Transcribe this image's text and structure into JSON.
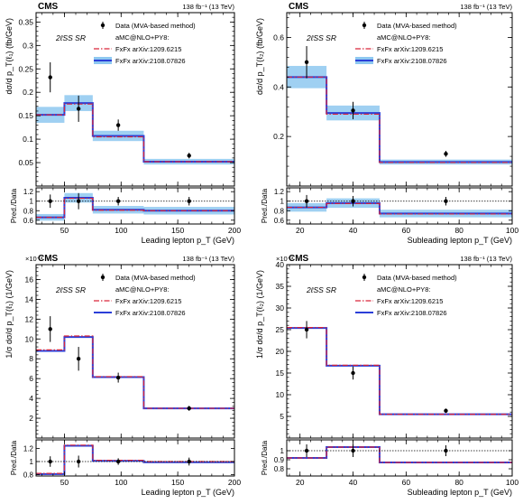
{
  "chart_data": [
    {
      "type": "step",
      "cms_label": "CMS",
      "lumi": "138 fb⁻¹ (13 TeV)",
      "region": "2ℓSS SR",
      "xlabel": "Leading lepton p_T (GeV)",
      "ylabel": "dσ/d p_T(ℓ₁) (fb/GeV)",
      "ratio_ylabel": "Pred./Data",
      "y_exponent": "",
      "xlim": [
        25,
        200
      ],
      "ylim": [
        0,
        0.37
      ],
      "ratio_ylim": [
        0.52,
        1.28
      ],
      "xticks": [
        50,
        100,
        150,
        200
      ],
      "xticklabels": [
        "50",
        "100",
        "150",
        "200"
      ],
      "yticks": [
        0.05,
        0.1,
        0.15,
        0.2,
        0.25,
        0.3,
        0.35
      ],
      "yticklabels": [
        "0.05",
        "0.1",
        "0.15",
        "0.2",
        "0.25",
        "0.3",
        "0.35"
      ],
      "ratio_yticks": [
        0.6,
        0.8,
        1.0,
        1.2
      ],
      "ratio_yticklabels": [
        "0.6",
        "0.8",
        "1",
        "1.2"
      ],
      "bin_edges": [
        25,
        50,
        75,
        120,
        200
      ],
      "legend": {
        "data": "Data (MVA-based method)",
        "generator": "aMC@NLO+PY8:",
        "pred1": "FxFx arXiv:1209.6215",
        "pred2": "FxFx arXiv:2108.07826"
      },
      "series": [
        {
          "key": "data",
          "x": [
            37.5,
            62.5,
            97.5,
            160
          ],
          "values": [
            0.232,
            0.165,
            0.13,
            0.065
          ],
          "err": [
            0.032,
            0.028,
            0.012,
            0.006
          ]
        },
        {
          "key": "pred1",
          "values": [
            0.152,
            0.175,
            0.105,
            0.052
          ]
        },
        {
          "key": "pred2",
          "values": [
            0.152,
            0.177,
            0.107,
            0.052
          ],
          "band": [
            0.017,
            0.017,
            0.011,
            0.006
          ]
        }
      ],
      "ratio": {
        "data_err": [
          0.14,
          0.17,
          0.09,
          0.09
        ],
        "pred1": [
          0.66,
          1.06,
          0.81,
          0.8
        ],
        "pred2": [
          0.66,
          1.07,
          0.82,
          0.8
        ],
        "band": [
          0.07,
          0.1,
          0.08,
          0.08
        ]
      }
    },
    {
      "type": "step",
      "cms_label": "CMS",
      "lumi": "138 fb⁻¹ (13 TeV)",
      "region": "2ℓSS SR",
      "xlabel": "Subleading lepton p_T (GeV)",
      "ylabel": "dσ/d p_T(ℓ₂) (fb/GeV)",
      "ratio_ylabel": "Pred./Data",
      "y_exponent": "",
      "xlim": [
        15,
        100
      ],
      "ylim": [
        0,
        0.7
      ],
      "ratio_ylim": [
        0.52,
        1.28
      ],
      "xticks": [
        20,
        40,
        60,
        80,
        100
      ],
      "xticklabels": [
        "20",
        "40",
        "60",
        "80",
        "100"
      ],
      "yticks": [
        0.2,
        0.4,
        0.6
      ],
      "yticklabels": [
        "0.2",
        "0.4",
        "0.6"
      ],
      "ratio_yticks": [
        0.6,
        0.8,
        1.0,
        1.2
      ],
      "ratio_yticklabels": [
        "0.6",
        "0.8",
        "1",
        "1.2"
      ],
      "bin_edges": [
        15,
        30,
        50,
        100
      ],
      "legend": {
        "data": "Data (MVA-based method)",
        "generator": "aMC@NLO+PY8:",
        "pred1": "FxFx arXiv:1209.6215",
        "pred2": "FxFx arXiv:2108.07826"
      },
      "series": [
        {
          "key": "data",
          "x": [
            22.5,
            40,
            75
          ],
          "values": [
            0.5,
            0.305,
            0.13
          ],
          "err": [
            0.065,
            0.035,
            0.012
          ]
        },
        {
          "key": "pred1",
          "values": [
            0.44,
            0.29,
            0.095
          ]
        },
        {
          "key": "pred2",
          "values": [
            0.44,
            0.295,
            0.097
          ],
          "band": [
            0.045,
            0.03,
            0.01
          ]
        }
      ],
      "ratio": {
        "data_err": [
          0.13,
          0.11,
          0.09
        ],
        "pred1": [
          0.87,
          0.95,
          0.73
        ],
        "pred2": [
          0.87,
          0.96,
          0.74
        ],
        "band": [
          0.09,
          0.1,
          0.08
        ]
      }
    },
    {
      "type": "step",
      "cms_label": "CMS",
      "lumi": "138 fb⁻¹ (13 TeV)",
      "region": "2ℓSS SR",
      "xlabel": "Leading lepton p_T (GeV)",
      "ylabel": "1/σ dσ/d p_T(ℓ₁) (1/GeV)",
      "ratio_ylabel": "Pred./Data",
      "y_exponent": "×10⁻³",
      "xlim": [
        25,
        200
      ],
      "ylim": [
        0,
        17.5
      ],
      "ratio_ylim": [
        0.78,
        1.33
      ],
      "xticks": [
        50,
        100,
        150,
        200
      ],
      "xticklabels": [
        "50",
        "100",
        "150",
        "200"
      ],
      "yticks": [
        2,
        4,
        6,
        8,
        10,
        12,
        14,
        16
      ],
      "yticklabels": [
        "2",
        "4",
        "6",
        "8",
        "10",
        "12",
        "14",
        "16"
      ],
      "ratio_yticks": [
        0.8,
        1.0,
        1.2
      ],
      "ratio_yticklabels": [
        "0.8",
        "1",
        "1.2"
      ],
      "bin_edges": [
        25,
        50,
        75,
        120,
        200
      ],
      "legend": {
        "data": "Data (MVA-based method)",
        "generator": "aMC@NLO+PY8:",
        "pred1": "FxFx arXiv:1209.6215",
        "pred2": "FxFx arXiv:2108.07826"
      },
      "series": [
        {
          "key": "data",
          "x": [
            37.5,
            62.5,
            97.5,
            160
          ],
          "values": [
            11.0,
            8.0,
            6.1,
            3.0
          ],
          "err": [
            1.3,
            1.2,
            0.5,
            0.25
          ]
        },
        {
          "key": "pred1",
          "values": [
            8.9,
            10.3,
            6.2,
            3.0
          ]
        },
        {
          "key": "pred2",
          "values": [
            8.8,
            10.2,
            6.15,
            3.0
          ]
        }
      ],
      "ratio": {
        "data_err": [
          0.08,
          0.09,
          0.05,
          0.06
        ],
        "pred1": [
          0.82,
          1.25,
          1.02,
          1.0
        ],
        "pred2": [
          0.81,
          1.24,
          1.01,
          0.99
        ]
      }
    },
    {
      "type": "step",
      "cms_label": "CMS",
      "lumi": "138 fb⁻¹ (13 TeV)",
      "region": "2ℓSS SR",
      "xlabel": "Subleading lepton p_T (GeV)",
      "ylabel": "1/σ dσ/d p_T(ℓ₂) (1/GeV)",
      "ratio_ylabel": "Pred./Data",
      "y_exponent": "×10⁻³",
      "xlim": [
        15,
        100
      ],
      "ylim": [
        0,
        40
      ],
      "ratio_ylim": [
        0.72,
        1.12
      ],
      "xticks": [
        20,
        40,
        60,
        80,
        100
      ],
      "xticklabels": [
        "20",
        "40",
        "60",
        "80",
        "100"
      ],
      "yticks": [
        5,
        10,
        15,
        20,
        25,
        30,
        35,
        40
      ],
      "yticklabels": [
        "5",
        "10",
        "15",
        "20",
        "25",
        "30",
        "35",
        "40"
      ],
      "ratio_yticks": [
        0.8,
        0.9,
        1.0
      ],
      "ratio_yticklabels": [
        "0.8",
        "0.9",
        "1"
      ],
      "bin_edges": [
        15,
        30,
        50,
        100
      ],
      "legend": {
        "data": "Data (MVA-based method)",
        "generator": "aMC@NLO+PY8:",
        "pred1": "FxFx arXiv:1209.6215",
        "pred2": "FxFx arXiv:2108.07826"
      },
      "series": [
        {
          "key": "data",
          "x": [
            22.5,
            40,
            75
          ],
          "values": [
            25.0,
            15.0,
            6.3
          ],
          "err": [
            2.0,
            1.5,
            0.5
          ]
        },
        {
          "key": "pred1",
          "values": [
            25.5,
            16.8,
            5.5
          ]
        },
        {
          "key": "pred2",
          "values": [
            25.4,
            16.7,
            5.5
          ]
        }
      ],
      "ratio": {
        "data_err": [
          0.07,
          0.07,
          0.06
        ],
        "pred1": [
          0.92,
          1.04,
          0.87
        ],
        "pred2": [
          0.92,
          1.04,
          0.87
        ]
      }
    }
  ]
}
